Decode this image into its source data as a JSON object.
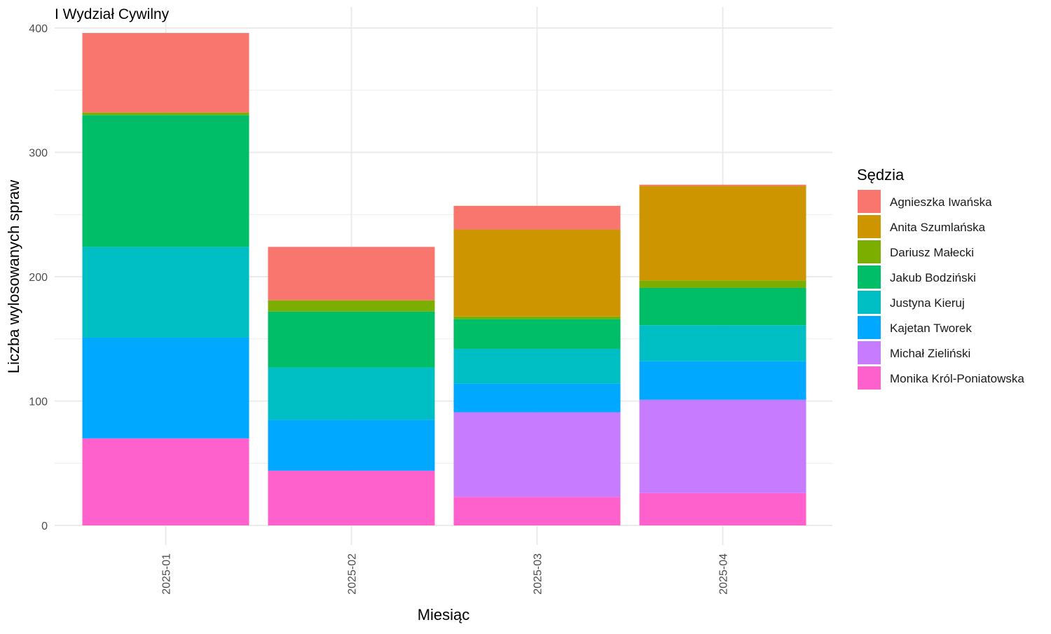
{
  "chart_data": {
    "type": "bar",
    "stacked": true,
    "title": "I Wydział Cywilny",
    "xlabel": "Miesiąc",
    "ylabel": "Liczba wylosowanych spraw",
    "ylim": [
      0,
      400
    ],
    "yticks": [
      0,
      100,
      200,
      300,
      400
    ],
    "grid": true,
    "legend_title": "Sędzia",
    "legend_position": "right",
    "categories": [
      "2025-01",
      "2025-02",
      "2025-03",
      "2025-04"
    ],
    "series": [
      {
        "name": "Monika Król-Poniatowska",
        "color": "#FF61CC",
        "values": [
          70,
          44,
          23,
          26
        ]
      },
      {
        "name": "Michał Zieliński",
        "color": "#C77CFF",
        "values": [
          0,
          0,
          68,
          75
        ]
      },
      {
        "name": "Kajetan Tworek",
        "color": "#00A9FF",
        "values": [
          81,
          41,
          23,
          31
        ]
      },
      {
        "name": "Justyna Kieruj",
        "color": "#00BFC4",
        "values": [
          73,
          42,
          28,
          29
        ]
      },
      {
        "name": "Jakub Bodziński",
        "color": "#00BE67",
        "values": [
          106,
          45,
          24,
          30
        ]
      },
      {
        "name": "Dariusz Małecki",
        "color": "#7CAE00",
        "values": [
          2,
          9,
          2,
          6
        ]
      },
      {
        "name": "Anita Szumlańska",
        "color": "#CD9600",
        "values": [
          0,
          0,
          70,
          76
        ]
      },
      {
        "name": "Agnieszka Iwańska",
        "color": "#F8766D",
        "values": [
          64,
          43,
          19,
          1
        ]
      }
    ]
  }
}
